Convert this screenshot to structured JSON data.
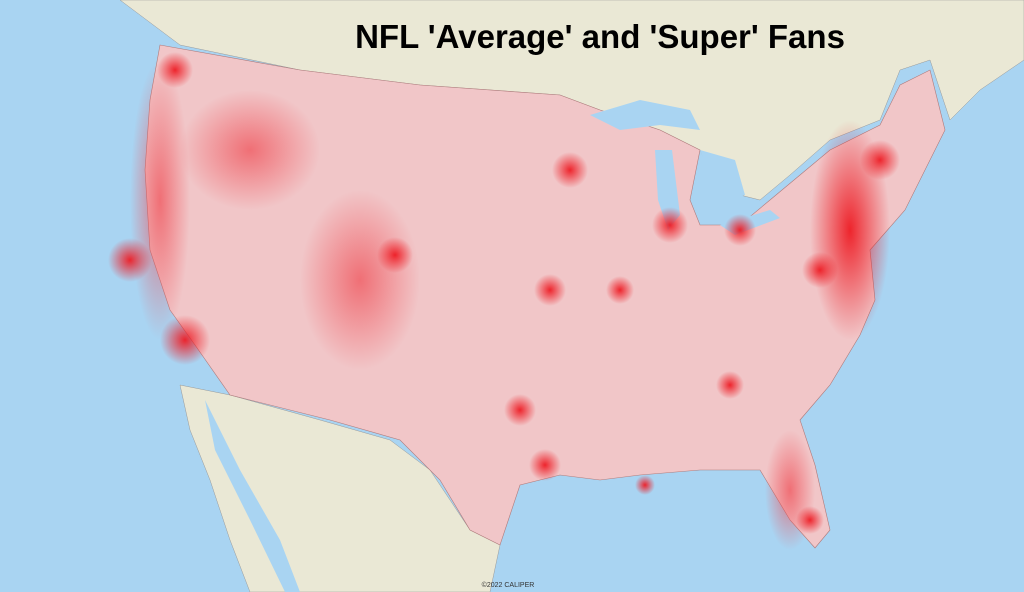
{
  "title": "NFL 'Average' and 'Super' Fans",
  "credit": "©2022 CALIPER"
}
